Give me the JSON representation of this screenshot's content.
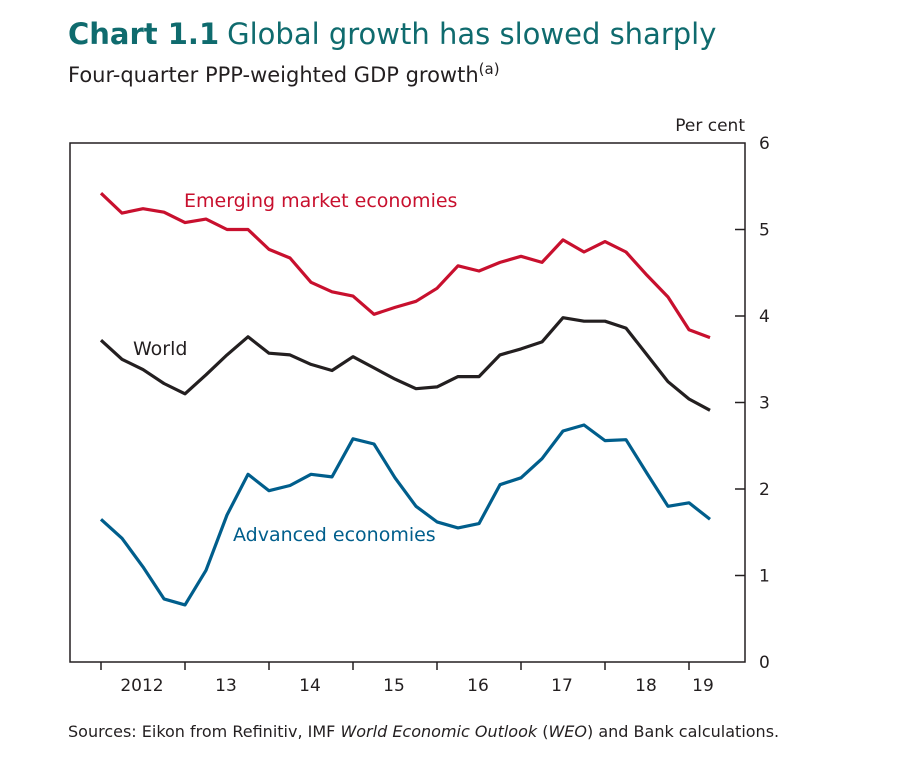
{
  "chart_data": {
    "type": "line",
    "title_number": "Chart 1.1",
    "title": "Global growth has slowed sharply",
    "subtitle": "Four-quarter PPP-weighted GDP growth",
    "subtitle_note": "(a)",
    "y_axis_label": "Per cent",
    "source": [
      "Sources: Eikon from Refinitiv, IMF ",
      "World Economic Outlook",
      " (",
      "WEO",
      ") and Bank calculations."
    ],
    "categories": [
      null,
      null,
      "2012",
      null,
      null,
      null,
      "13",
      null,
      null,
      null,
      "14",
      null,
      null,
      null,
      "15",
      null,
      null,
      null,
      "16",
      null,
      null,
      null,
      "17",
      null,
      null,
      null,
      "18",
      null,
      null,
      "19"
    ],
    "series": [
      {
        "name": "Emerging market economies",
        "color": "#c8102e",
        "values": [
          5.42,
          5.19,
          5.24,
          5.2,
          5.08,
          5.12,
          5.0,
          5.0,
          4.77,
          4.67,
          4.39,
          4.28,
          4.23,
          4.02,
          4.1,
          4.17,
          4.32,
          4.58,
          4.52,
          4.62,
          4.69,
          4.62,
          4.88,
          4.74,
          4.86,
          4.74,
          4.47,
          4.22,
          3.84,
          3.75
        ]
      },
      {
        "name": "World",
        "color": "#231f20",
        "values": [
          3.72,
          3.5,
          3.38,
          3.22,
          3.1,
          3.32,
          3.55,
          3.76,
          3.57,
          3.55,
          3.44,
          3.37,
          3.53,
          3.4,
          3.27,
          3.16,
          3.18,
          3.3,
          3.3,
          3.55,
          3.62,
          3.7,
          3.98,
          3.94,
          3.94,
          3.86,
          3.55,
          3.24,
          3.04,
          2.91
        ]
      },
      {
        "name": "Advanced economies",
        "color": "#005e8c",
        "values": [
          1.65,
          1.43,
          1.1,
          0.73,
          0.66,
          1.06,
          1.7,
          2.17,
          1.98,
          2.04,
          2.17,
          2.14,
          2.58,
          2.52,
          2.13,
          1.8,
          1.62,
          1.55,
          1.6,
          2.05,
          2.13,
          2.35,
          2.67,
          2.74,
          2.56,
          2.57,
          2.18,
          1.8,
          1.84,
          1.65
        ]
      }
    ],
    "ylim": [
      0,
      6
    ],
    "yticks": [
      0,
      1,
      2,
      3,
      4,
      5,
      6
    ],
    "grid": false,
    "legend": "inline"
  }
}
